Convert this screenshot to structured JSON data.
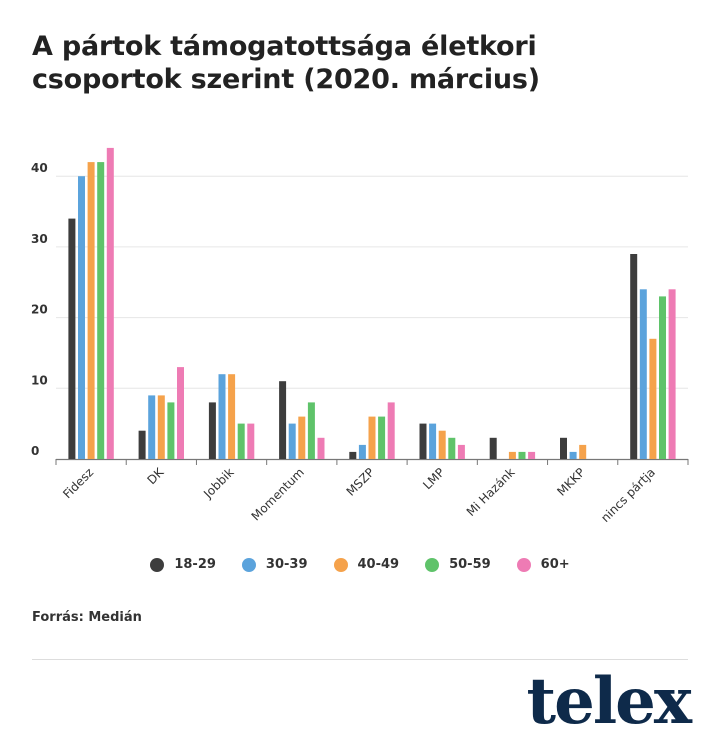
{
  "title": "A pártok támogatottsága életkori csoportok szerint (2020. március)",
  "source": "Forrás: Medián",
  "logo": "telex",
  "colors": {
    "series": [
      "#3d3d3d",
      "#5ba3dc",
      "#f5a24b",
      "#5fc36a",
      "#ee7bb4"
    ],
    "grid": "#e6e6e6",
    "axis": "#777777",
    "logo": "#0e2a4a"
  },
  "chart_data": {
    "type": "bar",
    "categories": [
      "Fidesz",
      "DK",
      "Jobbik",
      "Momentum",
      "MSZP",
      "LMP",
      "Mi Hazánk",
      "MKKP",
      "nincs pártja"
    ],
    "series": [
      {
        "name": "18-29",
        "values": [
          34,
          4,
          8,
          11,
          1,
          5,
          3,
          3,
          29
        ]
      },
      {
        "name": "30-39",
        "values": [
          40,
          9,
          12,
          5,
          2,
          5,
          0,
          1,
          24
        ]
      },
      {
        "name": "40-49",
        "values": [
          42,
          9,
          12,
          6,
          6,
          4,
          1,
          2,
          17
        ]
      },
      {
        "name": "50-59",
        "values": [
          42,
          8,
          5,
          8,
          6,
          3,
          1,
          0,
          23
        ]
      },
      {
        "name": "60+",
        "values": [
          44,
          13,
          5,
          3,
          8,
          2,
          1,
          0,
          24
        ]
      }
    ],
    "yticks": [
      0,
      10,
      20,
      30,
      40
    ],
    "ylim": [
      0,
      44
    ],
    "grid": true,
    "legend": "bottom"
  }
}
